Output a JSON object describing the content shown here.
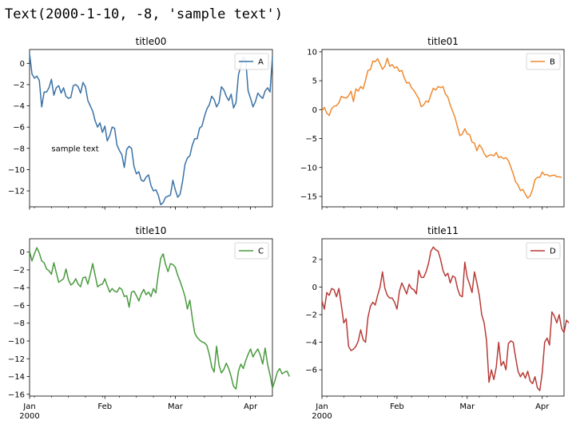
{
  "header": {
    "repr_text": "Text(2000-1-10, -8, 'sample text')"
  },
  "x_month_labels": [
    "Jan",
    "Feb",
    "Mar",
    "Apr"
  ],
  "x_year_label": "2000",
  "chart_data": [
    {
      "type": "line",
      "title": "title00",
      "legend": "top-right",
      "grid": false,
      "x": {
        "start": "2000-01-01",
        "days": 100
      },
      "ylim": [
        -13.5,
        1.3
      ],
      "yticks": [
        0,
        -2,
        -4,
        -6,
        -8,
        -10,
        -12
      ],
      "color": "#3a72a6",
      "series": [
        {
          "name": "A",
          "values": [
            0.9,
            -1.0,
            -1.4,
            -1.2,
            -1.6,
            -4.1,
            -2.7,
            -2.7,
            -2.3,
            -1.5,
            -3.0,
            -2.3,
            -2.1,
            -2.8,
            -2.3,
            -3.1,
            -3.3,
            -3.2,
            -2.1,
            -2.0,
            -2.2,
            -2.8,
            -1.8,
            -2.2,
            -3.5,
            -4.0,
            -4.5,
            -5.4,
            -6.0,
            -5.6,
            -6.5,
            -5.9,
            -7.3,
            -6.8,
            -6.0,
            -6.1,
            -7.7,
            -8.2,
            -8.6,
            -9.8,
            -8.1,
            -7.8,
            -8.0,
            -9.7,
            -10.4,
            -10.2,
            -11.0,
            -11.1,
            -10.7,
            -10.5,
            -11.5,
            -12.0,
            -11.9,
            -12.4,
            -13.3,
            -13.1,
            -12.6,
            -12.5,
            -12.4,
            -11.0,
            -11.9,
            -12.6,
            -12.3,
            -11.1,
            -9.5,
            -8.9,
            -8.7,
            -7.7,
            -7.1,
            -7.1,
            -6.1,
            -5.9,
            -5.0,
            -4.3,
            -3.9,
            -3.1,
            -3.4,
            -4.1,
            -3.7,
            -2.2,
            -2.5,
            -3.1,
            -3.5,
            -2.9,
            -4.2,
            -3.7,
            -1.1,
            -0.2,
            0.6,
            0.3,
            -2.6,
            -3.3,
            -4.1,
            -3.6,
            -2.8,
            -3.1,
            -3.3,
            -2.6,
            -2.3,
            -2.7,
            0.6
          ]
        }
      ],
      "annotations": [
        {
          "x": "2000-01-10",
          "y": -8,
          "text": "sample text"
        }
      ]
    },
    {
      "type": "line",
      "title": "title01",
      "legend": "top-right",
      "grid": false,
      "x": {
        "start": "2000-01-01",
        "days": 100
      },
      "ylim": [
        -16.8,
        10.4
      ],
      "yticks": [
        10,
        5,
        0,
        -5,
        -10,
        -15
      ],
      "color": "#ee8a31",
      "series": [
        {
          "name": "B",
          "values": [
            -0.2,
            0.4,
            -0.6,
            -1.0,
            0.2,
            0.6,
            0.7,
            1.2,
            2.3,
            2.1,
            2.0,
            2.4,
            3.2,
            1.4,
            3.6,
            3.2,
            4.0,
            3.6,
            5.1,
            6.8,
            6.9,
            8.4,
            8.3,
            8.8,
            7.9,
            7.0,
            7.5,
            8.9,
            7.5,
            7.8,
            7.2,
            7.4,
            6.6,
            6.8,
            5.5,
            4.6,
            4.7,
            3.8,
            3.3,
            2.6,
            1.9,
            0.5,
            0.8,
            1.5,
            1.3,
            2.6,
            3.7,
            3.4,
            4.0,
            3.8,
            4.0,
            2.7,
            2.2,
            0.8,
            -0.3,
            -1.4,
            -3.0,
            -4.5,
            -4.2,
            -3.3,
            -4.2,
            -4.3,
            -5.6,
            -5.8,
            -7.1,
            -6.1,
            -6.6,
            -7.6,
            -8.2,
            -7.9,
            -7.8,
            -8.0,
            -7.4,
            -8.3,
            -8.1,
            -8.5,
            -8.3,
            -8.8,
            -9.9,
            -11.1,
            -12.5,
            -13.0,
            -14.0,
            -13.8,
            -14.6,
            -15.3,
            -14.9,
            -13.8,
            -12.1,
            -11.7,
            -11.7,
            -10.8,
            -11.3,
            -11.2,
            -11.5,
            -11.4,
            -11.3,
            -11.6,
            -11.6,
            -11.7
          ]
        }
      ]
    },
    {
      "type": "line",
      "title": "title10",
      "legend": "top-right",
      "grid": false,
      "x": {
        "start": "2000-01-01",
        "days": 100
      },
      "ylim": [
        -16.2,
        1.5
      ],
      "yticks": [
        0,
        -2,
        -4,
        -6,
        -8,
        -10,
        -12,
        -14,
        -16
      ],
      "color": "#4a9a3f",
      "series": [
        {
          "name": "C",
          "values": [
            0.1,
            -1.0,
            -0.2,
            0.5,
            -0.1,
            -1.0,
            -1.2,
            -1.9,
            -2.1,
            -2.5,
            -1.2,
            -2.3,
            -3.4,
            -3.2,
            -3.0,
            -1.9,
            -3.1,
            -3.7,
            -3.5,
            -3.0,
            -3.6,
            -3.9,
            -2.9,
            -2.8,
            -3.6,
            -2.5,
            -1.3,
            -2.6,
            -3.9,
            -3.7,
            -3.6,
            -3.0,
            -3.8,
            -4.5,
            -4.1,
            -4.4,
            -4.5,
            -4.0,
            -4.2,
            -5.0,
            -4.9,
            -6.2,
            -4.5,
            -4.4,
            -4.9,
            -5.5,
            -4.7,
            -4.2,
            -4.8,
            -4.5,
            -5.0,
            -4.1,
            -4.6,
            -2.5,
            -0.7,
            -0.2,
            -1.4,
            -2.2,
            -1.3,
            -1.4,
            -1.7,
            -2.6,
            -3.3,
            -4.1,
            -5.0,
            -6.4,
            -5.4,
            -7.4,
            -9.1,
            -9.6,
            -9.9,
            -10.1,
            -10.2,
            -10.5,
            -11.5,
            -12.9,
            -13.5,
            -10.6,
            -12.7,
            -13.6,
            -13.2,
            -12.5,
            -13.1,
            -14.0,
            -15.1,
            -15.4,
            -13.4,
            -12.6,
            -13.1,
            -12.2,
            -11.5,
            -10.9,
            -11.8,
            -11.3,
            -10.9,
            -11.6,
            -12.6,
            -10.8,
            -12.6,
            -13.8,
            -15.3,
            -14.5,
            -13.5,
            -13.1,
            -13.7,
            -13.5,
            -13.4,
            -14.0
          ]
        }
      ]
    },
    {
      "type": "line",
      "title": "title11",
      "legend": "top-right",
      "grid": false,
      "x": {
        "start": "2000-01-01",
        "days": 100
      },
      "ylim": [
        -7.9,
        3.5
      ],
      "yticks": [
        2,
        0,
        -2,
        -4,
        -6
      ],
      "color": "#b83c38",
      "series": [
        {
          "name": "D",
          "values": [
            -1.0,
            -1.6,
            -0.4,
            -0.6,
            -0.1,
            -0.2,
            -0.7,
            -0.1,
            -1.3,
            -2.6,
            -2.3,
            -4.3,
            -4.6,
            -4.5,
            -4.3,
            -3.9,
            -3.1,
            -3.8,
            -4.0,
            -2.2,
            -1.4,
            -1.1,
            -1.3,
            -0.6,
            0.0,
            1.1,
            -0.1,
            -0.6,
            -0.8,
            -0.8,
            -1.1,
            -1.6,
            -0.3,
            0.3,
            -0.1,
            -0.5,
            0.2,
            -0.1,
            -0.2,
            -0.5,
            1.2,
            0.7,
            0.7,
            1.1,
            1.7,
            2.6,
            2.9,
            2.7,
            2.6,
            2.0,
            1.2,
            0.8,
            1.0,
            0.3,
            0.8,
            0.7,
            -0.1,
            -0.6,
            -0.7,
            1.8,
            0.7,
            0.2,
            -0.4,
            1.1,
            0.3,
            -0.6,
            -2.0,
            -2.6,
            -3.9,
            -6.9,
            -6.0,
            -6.7,
            -5.8,
            -4.0,
            -5.7,
            -5.4,
            -6.0,
            -4.1,
            -3.9,
            -4.0,
            -5.1,
            -6.1,
            -6.5,
            -6.2,
            -6.6,
            -6.1,
            -6.8,
            -7.0,
            -6.5,
            -7.3,
            -7.5,
            -6.2,
            -4.0,
            -3.7,
            -4.2,
            -1.8,
            -2.1,
            -2.6,
            -2.0,
            -3.0,
            -3.3,
            -2.4,
            -2.6
          ]
        }
      ]
    }
  ]
}
